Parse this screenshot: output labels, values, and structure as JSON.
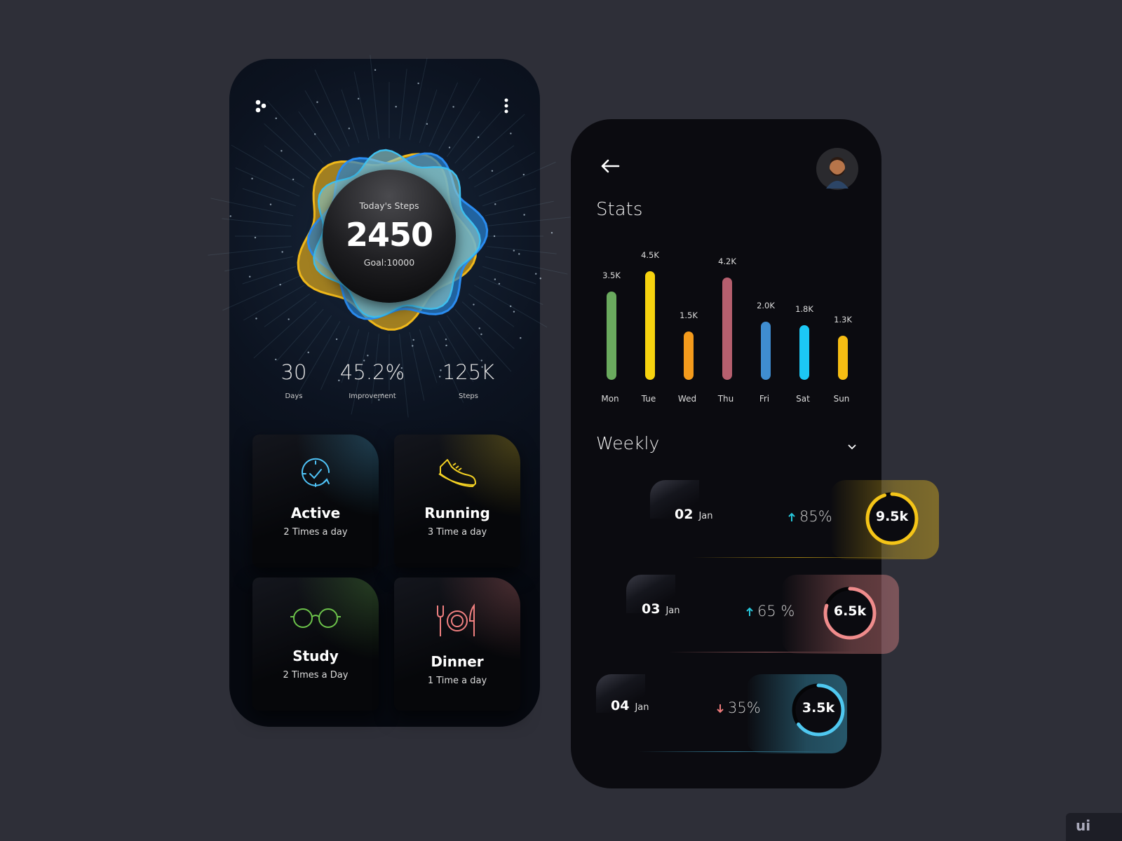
{
  "home": {
    "menu_icon": "dots-cluster-icon",
    "more_icon": "kebab-menu-icon",
    "today": {
      "label": "Today's Steps",
      "value": "2450",
      "goal": "Goal:10000"
    },
    "stats": [
      {
        "value": "30",
        "label": "Days"
      },
      {
        "value": "45.2%",
        "label": "Improvement"
      },
      {
        "value": "125K",
        "label": "Steps"
      }
    ],
    "cards": [
      {
        "title": "Active",
        "subtitle": "2 Times a day",
        "icon": "clock-check-icon",
        "color": "#4fc3f7"
      },
      {
        "title": "Running",
        "subtitle": "3 Time a day",
        "icon": "sneaker-icon",
        "color": "#f2d023"
      },
      {
        "title": "Study",
        "subtitle": "2 Times a Day",
        "icon": "glasses-icon",
        "color": "#6cc24a"
      },
      {
        "title": "Dinner",
        "subtitle": "1 Time a day",
        "icon": "fork-plate-knife-icon",
        "color": "#f08080"
      }
    ]
  },
  "stats_screen": {
    "back_icon": "arrow-left-icon",
    "title": "Stats",
    "period": "Weekly",
    "rows": [
      {
        "day": "02",
        "month": "Jan",
        "trend": "up",
        "percent": "85%",
        "value": "9.5k",
        "ring_progress": 0.95,
        "color": "#f5c518"
      },
      {
        "day": "03",
        "month": "Jan",
        "trend": "up",
        "percent": "65 %",
        "value": "6.5k",
        "ring_progress": 0.8,
        "color": "#f08c8c"
      },
      {
        "day": "04",
        "month": "Jan",
        "trend": "down",
        "percent": "35%",
        "value": "3.5k",
        "ring_progress": 0.65,
        "color": "#4fc8f0"
      }
    ],
    "trend_colors": {
      "up": "#26c6da",
      "down": "#ef7b7b"
    }
  },
  "chart_data": {
    "type": "bar",
    "categories": [
      "Mon",
      "Tue",
      "Wed",
      "Thu",
      "Fri",
      "Sat",
      "Sun"
    ],
    "values": [
      3.5,
      4.5,
      1.5,
      4.2,
      2.0,
      1.8,
      1.3
    ],
    "labels": [
      "3.5K",
      "4.5K",
      "1.5K",
      "4.2K",
      "2.0K",
      "1.8K",
      "1.3K"
    ],
    "colors": [
      "#6aaa5e",
      "#f7d30f",
      "#f49b1c",
      "#b65f6e",
      "#3f8dd0",
      "#1cc8f5",
      "#f6bd13"
    ],
    "unit": "K steps",
    "grid": false
  },
  "watermark": "ui"
}
